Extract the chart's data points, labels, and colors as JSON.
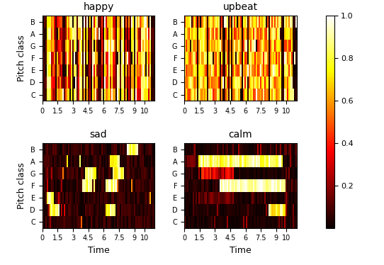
{
  "titles": [
    "happy",
    "upbeat",
    "sad",
    "calm"
  ],
  "pitch_classes": [
    "C",
    "D",
    "E",
    "F",
    "G",
    "A",
    "B"
  ],
  "time_ticks": [
    0,
    1.5,
    3,
    4.5,
    6,
    7.5,
    9,
    10
  ],
  "time_label": "Time",
  "pitch_label": "Pitch class",
  "colormap": "hot",
  "vmin": 0,
  "vmax": 1,
  "cbar_ticks": [
    0.2,
    0.4,
    0.6,
    0.8,
    1.0
  ],
  "n_time": 80,
  "n_pitch": 7,
  "figsize": [
    5.42,
    3.74
  ],
  "dpi": 100
}
